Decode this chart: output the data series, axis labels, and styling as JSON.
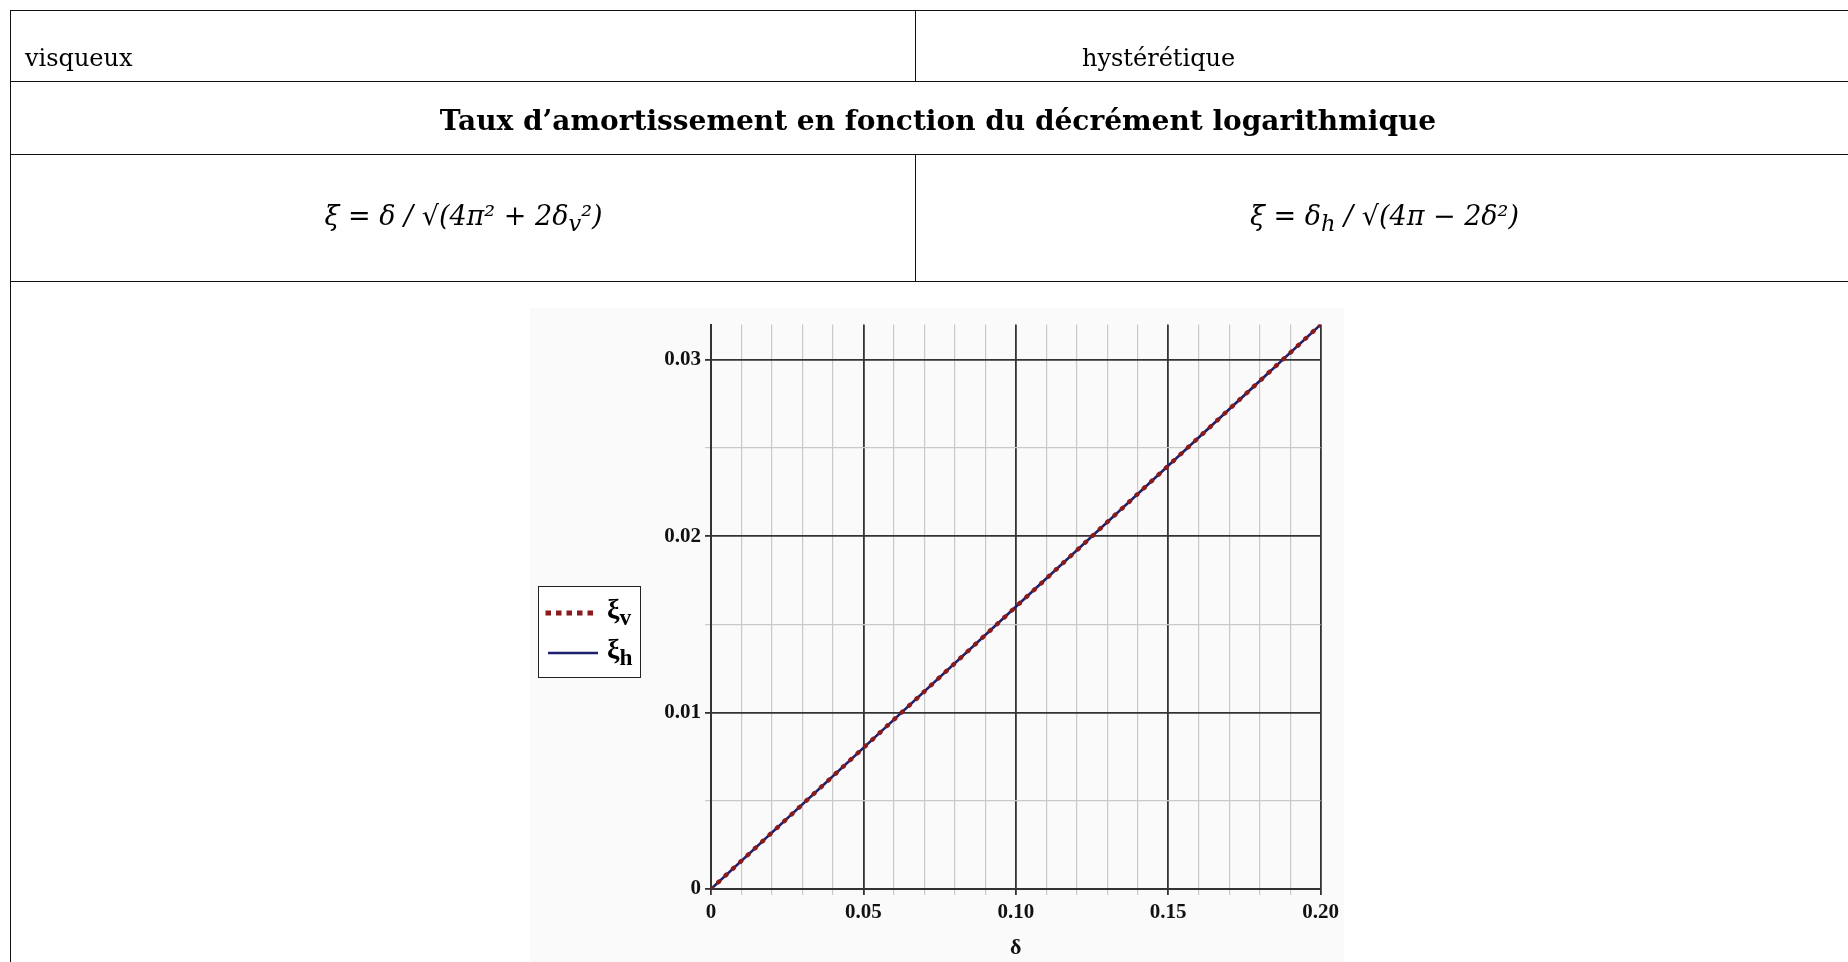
{
  "chart_data": {
    "type": "line",
    "title": "Taux d’amortissement en fonction du décrément logarithmique",
    "xlabel": "δ",
    "x": [
      0,
      0.05,
      0.1,
      0.15,
      0.2
    ],
    "series": [
      {
        "name": "ξ$_{v}$",
        "color": "#8b1a1a",
        "line_style": "dotted",
        "values": [
          0,
          0.008,
          0.016,
          0.024,
          0.032
        ]
      },
      {
        "name": "ξ$_{h}$",
        "color": "#1f1f70",
        "line_style": "solid",
        "values": [
          0,
          0.008,
          0.016,
          0.024,
          0.032
        ]
      }
    ],
    "xlim": [
      0,
      0.2
    ],
    "ylim": [
      0,
      0.032
    ],
    "xticks": [
      0,
      {
        "value": 0.01,
        "label": null
      },
      {
        "value": 0.02,
        "label": null
      },
      {
        "value": 0.03,
        "label": null
      },
      {
        "value": 0.04,
        "label": null
      },
      0.05,
      {
        "value": 0.06,
        "label": null
      },
      {
        "value": 0.07,
        "label": null
      },
      {
        "value": 0.08,
        "label": null
      },
      {
        "value": 0.09,
        "label": null
      },
      {
        "value": 0.1,
        "label": "0.10"
      },
      {
        "value": 0.11,
        "label": null
      },
      {
        "value": 0.12,
        "label": null
      },
      {
        "value": 0.13,
        "label": null
      },
      {
        "value": 0.14,
        "label": null
      },
      0.15,
      {
        "value": 0.16,
        "label": null
      },
      {
        "value": 0.17,
        "label": null
      },
      {
        "value": 0.18,
        "label": null
      },
      {
        "value": 0.19,
        "label": null
      },
      {
        "value": 0.2,
        "label": "0.20"
      }
    ],
    "yticks": [
      0,
      {
        "value": 0.005,
        "label": null
      },
      0.01,
      {
        "value": 0.015,
        "label": null
      },
      0.02,
      {
        "value": 0.025,
        "label": null
      },
      0.03
    ],
    "grid": true,
    "legend": "left",
    "annotations": [
      "visqueux",
      "hystérétique",
      "ξ = δ / √(4π² + 2δ$_{v}$²)",
      "ξ = δ$_{h}$ / √(4π − 2δ²)"
    ]
  }
}
